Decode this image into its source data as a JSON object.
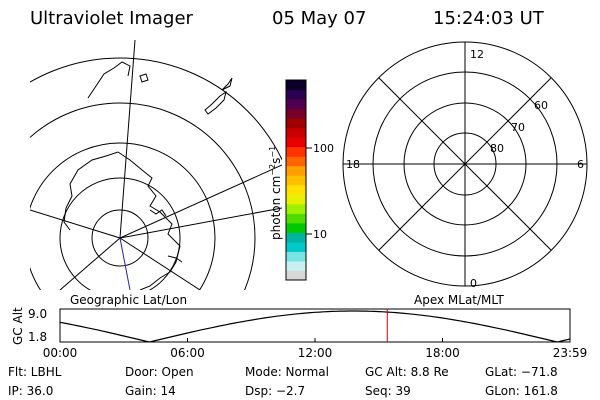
{
  "header": {
    "instrument": "Ultraviolet Imager",
    "date": "05 May 07",
    "time": "15:24:03 UT"
  },
  "geo_panel": {
    "label": "Geographic Lat/Lon"
  },
  "apex_panel": {
    "label": "Apex MLat/MLT",
    "mlt_labels": {
      "top": "12",
      "left": "18",
      "right": "6",
      "bottom": "0"
    },
    "lat_labels": [
      "60",
      "70",
      "80"
    ]
  },
  "colorbar": {
    "unit_label": "photon cm",
    "unit_exp1": "−2",
    "unit_mid": "s",
    "unit_exp2": "−1",
    "tick_100": "100",
    "tick_10": "10",
    "scale": "log",
    "colors": [
      "#d8d8d8",
      "#c8f0f0",
      "#78e4e4",
      "#00c8c8",
      "#00b4a0",
      "#00c800",
      "#50dc00",
      "#a0f000",
      "#e6f000",
      "#ffe000",
      "#ffc000",
      "#ffa000",
      "#ff6400",
      "#ff3200",
      "#e60000",
      "#c80000",
      "#a00000",
      "#780028",
      "#500050",
      "#2a0050",
      "#0a0028"
    ]
  },
  "timeline": {
    "axis_label": "GC Alt",
    "y_top": "9.0",
    "y_bottom": "1.8",
    "ticks": [
      "00:00",
      "06:00",
      "12:00",
      "18:00",
      "23:59"
    ],
    "current_time_hours": 15.4,
    "marker_color": "#cc0000"
  },
  "info": {
    "row1": {
      "filter": "Flt: LBHL",
      "door": "Door: Open",
      "mode": "Mode: Normal",
      "gc_alt": "GC Alt: 8.8 Re",
      "glat": "GLat: −71.8"
    },
    "row2": {
      "ip": "IP: 36.0",
      "gain": "Gain: 14",
      "dsp": "Dsp:   −2.7",
      "seq": "Seq: 39",
      "glon": "GLon: 161.8"
    }
  }
}
